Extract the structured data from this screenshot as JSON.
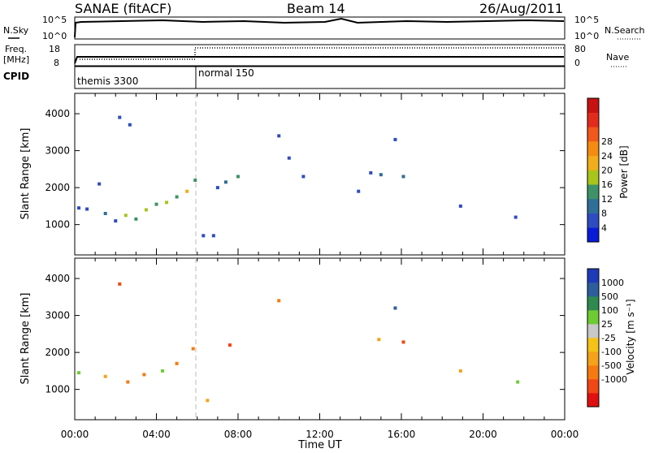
{
  "header": {
    "station": "SANAE (fitACF)",
    "beam": "Beam 14",
    "date": "26/Aug/2011"
  },
  "noise_panel": {
    "left_label": "N.Sky",
    "left_ticks": [
      "10^5",
      "10^0"
    ],
    "right_label": "N.Search",
    "right_ticks": [
      "10^5",
      "10^0"
    ]
  },
  "freq_panel": {
    "left_label_line1": "Freq.",
    "left_label_line2": "[MHz]",
    "left_ticks": [
      "18",
      "8"
    ],
    "right_label": "Nave",
    "right_ticks": [
      "80",
      "0"
    ]
  },
  "cpid_panel": {
    "label": "CPID",
    "segments": [
      {
        "name": "themis 3300",
        "start_hour": 0
      },
      {
        "name": "normal 150",
        "start_hour": 6
      }
    ]
  },
  "chart_data": [
    {
      "type": "heatmap",
      "title": "",
      "ylabel": "Slant Range [km]",
      "xlabel": "",
      "x_range_hours": [
        0,
        24
      ],
      "ylim": [
        180,
        4550
      ],
      "yticks": [
        1000,
        2000,
        3000,
        4000
      ],
      "colorbar": {
        "label": "Power [dB]",
        "ticks": [
          "4",
          "8",
          "12",
          "16",
          "20",
          "24",
          "28"
        ],
        "colors": [
          "#0a1bd8",
          "#2e4cbf",
          "#2f6e96",
          "#3d9367",
          "#a9c51c",
          "#f1ad1b",
          "#f58b11",
          "#f1591a",
          "#e32b1c",
          "#c81212"
        ]
      },
      "series": [
        {
          "hour": 0.2,
          "range_km": 1450,
          "value": 6
        },
        {
          "hour": 0.6,
          "range_km": 1420,
          "value": 5
        },
        {
          "hour": 1.2,
          "range_km": 2100,
          "value": 5
        },
        {
          "hour": 1.5,
          "range_km": 1300,
          "value": 8
        },
        {
          "hour": 2.0,
          "range_km": 1100,
          "value": 6
        },
        {
          "hour": 2.2,
          "range_km": 3900,
          "value": 4
        },
        {
          "hour": 2.5,
          "range_km": 1250,
          "value": 14
        },
        {
          "hour": 2.7,
          "range_km": 3700,
          "value": 4
        },
        {
          "hour": 3.0,
          "range_km": 1150,
          "value": 10
        },
        {
          "hour": 3.5,
          "range_km": 1400,
          "value": 14
        },
        {
          "hour": 4.0,
          "range_km": 1550,
          "value": 12
        },
        {
          "hour": 4.5,
          "range_km": 1600,
          "value": 15
        },
        {
          "hour": 5.0,
          "range_km": 1750,
          "value": 10
        },
        {
          "hour": 5.5,
          "range_km": 1900,
          "value": 16
        },
        {
          "hour": 5.9,
          "range_km": 2200,
          "value": 12
        },
        {
          "hour": 6.3,
          "range_km": 700,
          "value": 6
        },
        {
          "hour": 6.8,
          "range_km": 700,
          "value": 4
        },
        {
          "hour": 7.0,
          "range_km": 2000,
          "value": 6
        },
        {
          "hour": 7.4,
          "range_km": 2150,
          "value": 8
        },
        {
          "hour": 8.0,
          "range_km": 2300,
          "value": 10
        },
        {
          "hour": 10.0,
          "range_km": 3400,
          "value": 6
        },
        {
          "hour": 10.5,
          "range_km": 2800,
          "value": 6
        },
        {
          "hour": 11.2,
          "range_km": 2300,
          "value": 5
        },
        {
          "hour": 13.9,
          "range_km": 1900,
          "value": 5
        },
        {
          "hour": 14.5,
          "range_km": 2400,
          "value": 6
        },
        {
          "hour": 15.0,
          "range_km": 2350,
          "value": 9
        },
        {
          "hour": 15.7,
          "range_km": 3300,
          "value": 5
        },
        {
          "hour": 16.1,
          "range_km": 2300,
          "value": 8
        },
        {
          "hour": 18.9,
          "range_km": 1500,
          "value": 5
        },
        {
          "hour": 21.6,
          "range_km": 1200,
          "value": 5
        }
      ]
    },
    {
      "type": "heatmap",
      "title": "",
      "ylabel": "Slant Range [km]",
      "xlabel": "Time UT",
      "x_range_hours": [
        0,
        24
      ],
      "xticks": [
        "00:00",
        "04:00",
        "08:00",
        "12:00",
        "16:00",
        "20:00",
        "00:00"
      ],
      "ylim": [
        180,
        4550
      ],
      "yticks": [
        1000,
        2000,
        3000,
        4000
      ],
      "colorbar": {
        "label": "Velocity [m s⁻¹]",
        "ticks": [
          "1000",
          "500",
          "100",
          "25",
          "-25",
          "-100",
          "-500",
          "-1000"
        ],
        "colors": [
          "#1f3ab8",
          "#2c5d9d",
          "#2f8a50",
          "#6ecb33",
          "#c8c8c8",
          "#f5c218",
          "#f5a21a",
          "#f57a10",
          "#f04714",
          "#e01010"
        ]
      },
      "series": [
        {
          "hour": 0.2,
          "range_km": 1450,
          "value": 60
        },
        {
          "hour": 1.5,
          "range_km": 1350,
          "value": -60
        },
        {
          "hour": 2.2,
          "range_km": 3850,
          "value": -700
        },
        {
          "hour": 2.6,
          "range_km": 1200,
          "value": -300
        },
        {
          "hour": 3.4,
          "range_km": 1400,
          "value": -250
        },
        {
          "hour": 4.3,
          "range_km": 1500,
          "value": 60
        },
        {
          "hour": 5.0,
          "range_km": 1700,
          "value": -250
        },
        {
          "hour": 5.8,
          "range_km": 2100,
          "value": -150
        },
        {
          "hour": 6.5,
          "range_km": 700,
          "value": -80
        },
        {
          "hour": 7.6,
          "range_km": 2200,
          "value": -700
        },
        {
          "hour": 10.0,
          "range_km": 3400,
          "value": -250
        },
        {
          "hour": 14.9,
          "range_km": 2350,
          "value": -80
        },
        {
          "hour": 15.7,
          "range_km": 3200,
          "value": 700
        },
        {
          "hour": 16.1,
          "range_km": 2280,
          "value": -800
        },
        {
          "hour": 18.9,
          "range_km": 1500,
          "value": -80
        },
        {
          "hour": 21.7,
          "range_km": 1200,
          "value": 60
        }
      ]
    }
  ]
}
